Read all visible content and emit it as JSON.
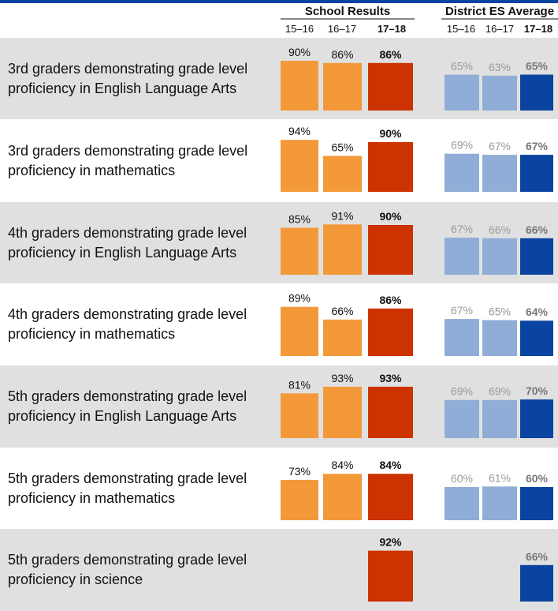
{
  "chart_data": {
    "type": "bar",
    "groups": [
      {
        "name": "School Results",
        "periods": [
          "15–16",
          "16–17",
          "17–18"
        ],
        "colors": [
          "#f4993a",
          "#f4993a",
          "#cc3300"
        ]
      },
      {
        "name": "District ES Average",
        "periods": [
          "15–16",
          "16–17",
          "17–18"
        ],
        "colors": [
          "#8fadd6",
          "#8fadd6",
          "#0b44a0"
        ]
      }
    ],
    "rows": [
      {
        "label": "3rd graders demonstrating grade level proficiency in English Language Arts",
        "school": [
          90,
          86,
          86
        ],
        "district": [
          65,
          63,
          65
        ],
        "school_labels": [
          "90%",
          "86%",
          "86%"
        ],
        "district_labels": [
          "65%",
          "63%",
          "65%"
        ]
      },
      {
        "label": "3rd graders demonstrating grade level proficiency in mathematics",
        "school": [
          94,
          65,
          90
        ],
        "district": [
          69,
          67,
          67
        ],
        "school_labels": [
          "94%",
          "65%",
          "90%"
        ],
        "district_labels": [
          "69%",
          "67%",
          "67%"
        ]
      },
      {
        "label": "4th graders demonstrating grade level proficiency in English Language Arts",
        "school": [
          85,
          91,
          90
        ],
        "district": [
          67,
          66,
          66
        ],
        "school_labels": [
          "85%",
          "91%",
          "90%"
        ],
        "district_labels": [
          "67%",
          "66%",
          "66%"
        ]
      },
      {
        "label": "4th graders demonstrating grade level proficiency in mathematics",
        "school": [
          89,
          66,
          86
        ],
        "district": [
          67,
          65,
          64
        ],
        "school_labels": [
          "89%",
          "66%",
          "86%"
        ],
        "district_labels": [
          "67%",
          "65%",
          "64%"
        ]
      },
      {
        "label": "5th graders demonstrating grade level proficiency in English Language Arts",
        "school": [
          81,
          93,
          93
        ],
        "district": [
          69,
          69,
          70
        ],
        "school_labels": [
          "81%",
          "93%",
          "93%"
        ],
        "district_labels": [
          "69%",
          "69%",
          "70%"
        ]
      },
      {
        "label": "5th graders demonstrating grade level proficiency in mathematics",
        "school": [
          73,
          84,
          84
        ],
        "district": [
          60,
          61,
          60
        ],
        "school_labels": [
          "73%",
          "84%",
          "84%"
        ],
        "district_labels": [
          "60%",
          "61%",
          "60%"
        ]
      },
      {
        "label": "5th graders demonstrating grade level proficiency in science",
        "school": [
          null,
          null,
          92
        ],
        "district": [
          null,
          null,
          66
        ],
        "school_labels": [
          "",
          "",
          "92%"
        ],
        "district_labels": [
          "",
          "",
          "66%"
        ]
      }
    ],
    "ylim": [
      0,
      100
    ],
    "grid": false,
    "legend": "none",
    "title": "",
    "xlabel": "",
    "ylabel": ""
  },
  "colors": {
    "header_bar": "#0b44a0",
    "row_shade": "#e0e0e0",
    "school_prior": "#f4993a",
    "school_current": "#cc3300",
    "district_prior": "#8fadd6",
    "district_current": "#0b44a0",
    "district_prior_label": "#999999",
    "district_current_label": "#777777",
    "school_label": "#111111"
  }
}
